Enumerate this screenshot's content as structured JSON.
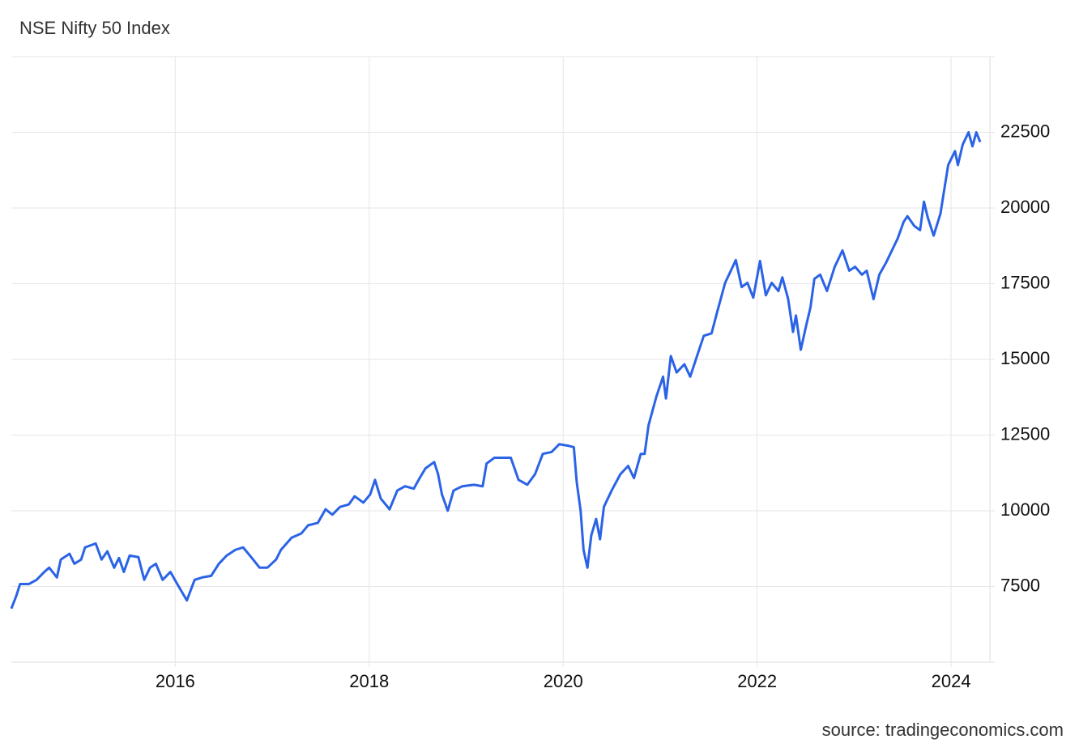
{
  "chart_data": {
    "type": "line",
    "title": "NSE Nifty 50 Index",
    "source": "source: tradingeconomics.com",
    "xlim": [
      2014.31,
      2024.4
    ],
    "xticks": [
      2016,
      2018,
      2020,
      2022,
      2024
    ],
    "ylim": [
      5000,
      25000
    ],
    "yticks": [
      7500,
      10000,
      12500,
      15000,
      17500,
      20000,
      22500
    ],
    "grid": true,
    "x": [
      2014.31,
      2014.36,
      2014.4,
      2014.49,
      2014.57,
      2014.65,
      2014.7,
      2014.78,
      2014.82,
      2014.91,
      2014.96,
      2015.03,
      2015.07,
      2015.18,
      2015.24,
      2015.3,
      2015.37,
      2015.42,
      2015.47,
      2015.53,
      2015.62,
      2015.68,
      2015.74,
      2015.8,
      2015.87,
      2015.95,
      2016.03,
      2016.12,
      2016.2,
      2016.28,
      2016.37,
      2016.45,
      2016.53,
      2016.62,
      2016.7,
      2016.79,
      2016.87,
      2016.95,
      2017.04,
      2017.09,
      2017.2,
      2017.3,
      2017.37,
      2017.47,
      2017.55,
      2017.62,
      2017.7,
      2017.79,
      2017.85,
      2017.94,
      2018.01,
      2018.06,
      2018.12,
      2018.21,
      2018.29,
      2018.37,
      2018.46,
      2018.52,
      2018.58,
      2018.67,
      2018.71,
      2018.75,
      2018.81,
      2018.87,
      2018.96,
      2019.08,
      2019.17,
      2019.21,
      2019.29,
      2019.38,
      2019.46,
      2019.54,
      2019.63,
      2019.71,
      2019.79,
      2019.88,
      2019.96,
      2020.05,
      2020.11,
      2020.14,
      2020.18,
      2020.21,
      2020.25,
      2020.29,
      2020.34,
      2020.38,
      2020.42,
      2020.5,
      2020.59,
      2020.67,
      2020.73,
      2020.8,
      2020.84,
      2020.88,
      2020.96,
      2021.03,
      2021.06,
      2021.11,
      2021.17,
      2021.25,
      2021.31,
      2021.38,
      2021.45,
      2021.53,
      2021.59,
      2021.67,
      2021.71,
      2021.78,
      2021.84,
      2021.9,
      2021.96,
      2022.03,
      2022.09,
      2022.15,
      2022.22,
      2022.26,
      2022.32,
      2022.37,
      2022.4,
      2022.45,
      2022.51,
      2022.55,
      2022.59,
      2022.65,
      2022.72,
      2022.76,
      2022.8,
      2022.88,
      2022.95,
      2023.01,
      2023.08,
      2023.13,
      2023.2,
      2023.26,
      2023.33,
      2023.39,
      2023.45,
      2023.51,
      2023.55,
      2023.62,
      2023.68,
      2023.72,
      2023.76,
      2023.82,
      2023.89,
      2023.93,
      2023.97,
      2024.04,
      2024.07,
      2024.12,
      2024.18,
      2024.22,
      2024.26,
      2024.3
    ],
    "series": [
      {
        "name": "NSE Nifty 50 Index",
        "color": "#2b63e6",
        "values": [
          6770,
          7180,
          7580,
          7580,
          7720,
          7980,
          8120,
          7800,
          8390,
          8580,
          8250,
          8390,
          8790,
          8920,
          8390,
          8660,
          8120,
          8440,
          7980,
          8520,
          8470,
          7720,
          8120,
          8250,
          7720,
          7980,
          7530,
          7040,
          7720,
          7800,
          7850,
          8250,
          8520,
          8710,
          8790,
          8440,
          8120,
          8120,
          8390,
          8710,
          9110,
          9250,
          9520,
          9600,
          10050,
          9870,
          10130,
          10210,
          10480,
          10270,
          10540,
          11020,
          10400,
          10050,
          10670,
          10810,
          10730,
          11080,
          11400,
          11610,
          11210,
          10540,
          10000,
          10670,
          10810,
          10860,
          10810,
          11560,
          11750,
          11750,
          11750,
          11020,
          10860,
          11210,
          11880,
          11940,
          12200,
          12150,
          12100,
          10940,
          10000,
          8710,
          8120,
          9190,
          9730,
          9060,
          10130,
          10670,
          11210,
          11480,
          11080,
          11880,
          11880,
          12820,
          13760,
          14430,
          13710,
          15110,
          14570,
          14840,
          14430,
          15110,
          15780,
          15860,
          16590,
          17530,
          17800,
          18280,
          17390,
          17530,
          17040,
          18250,
          17120,
          17530,
          17260,
          17710,
          16990,
          15910,
          16450,
          15320,
          16180,
          16720,
          17660,
          17800,
          17260,
          17660,
          18060,
          18600,
          17930,
          18060,
          17800,
          17930,
          16990,
          17800,
          18200,
          18600,
          19000,
          19540,
          19730,
          19410,
          19270,
          20210,
          19680,
          19090,
          19810,
          20620,
          21420,
          21880,
          21420,
          22100,
          22500,
          22040,
          22500,
          22180
        ]
      }
    ]
  }
}
